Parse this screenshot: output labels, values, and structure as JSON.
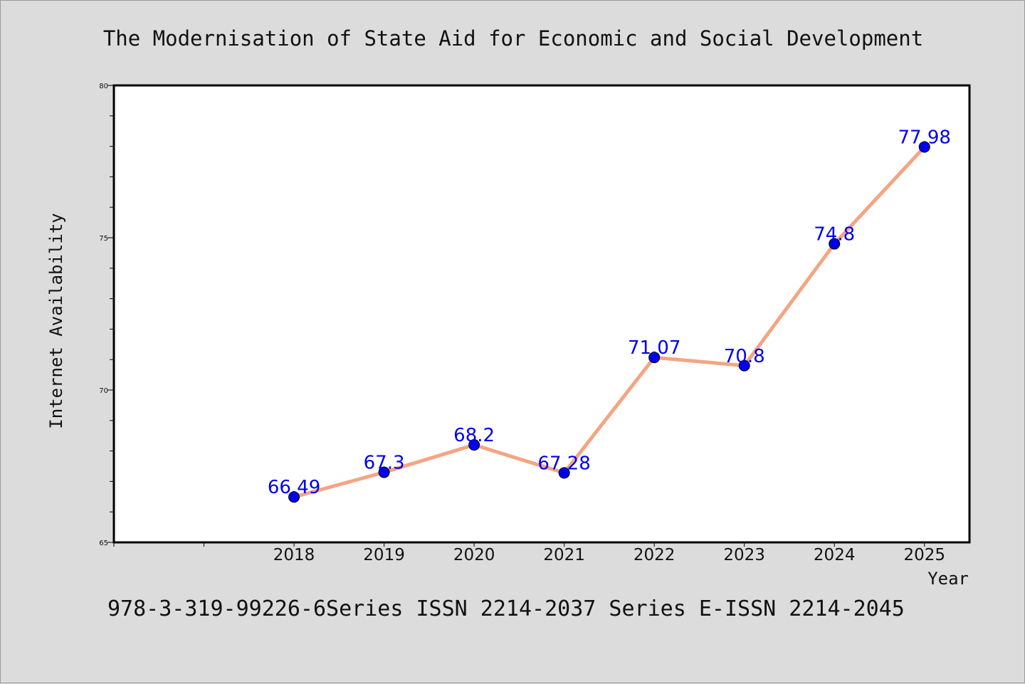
{
  "chart_data": {
    "type": "line",
    "title": "The Modernisation of State Aid for Economic and Social Development",
    "xlabel": "Year",
    "ylabel": "Internet Availability",
    "footer": "978-3-319-99226-6Series ISSN 2214-2037 Series E-ISSN 2214-2045",
    "x": [
      "2018",
      "2019",
      "2020",
      "2021",
      "2022",
      "2023",
      "2024",
      "2025"
    ],
    "values": [
      66.49,
      67.3,
      68.2,
      67.28,
      71.07,
      70.8,
      74.8,
      77.98
    ],
    "data_labels": [
      "66.49",
      "67.3",
      "68.2",
      "67.28",
      "71.07",
      "70.8",
      "74.8",
      "77.98"
    ],
    "ylim": [
      65,
      80
    ],
    "yticks": [
      "65",
      "70",
      "75",
      "80"
    ],
    "grid": false,
    "colors": {
      "line": "#f4a582",
      "marker": "#0000ee",
      "label": "#0000ee",
      "plot_bg": "#ffffff",
      "page_bg": "#dcdcdc"
    }
  }
}
